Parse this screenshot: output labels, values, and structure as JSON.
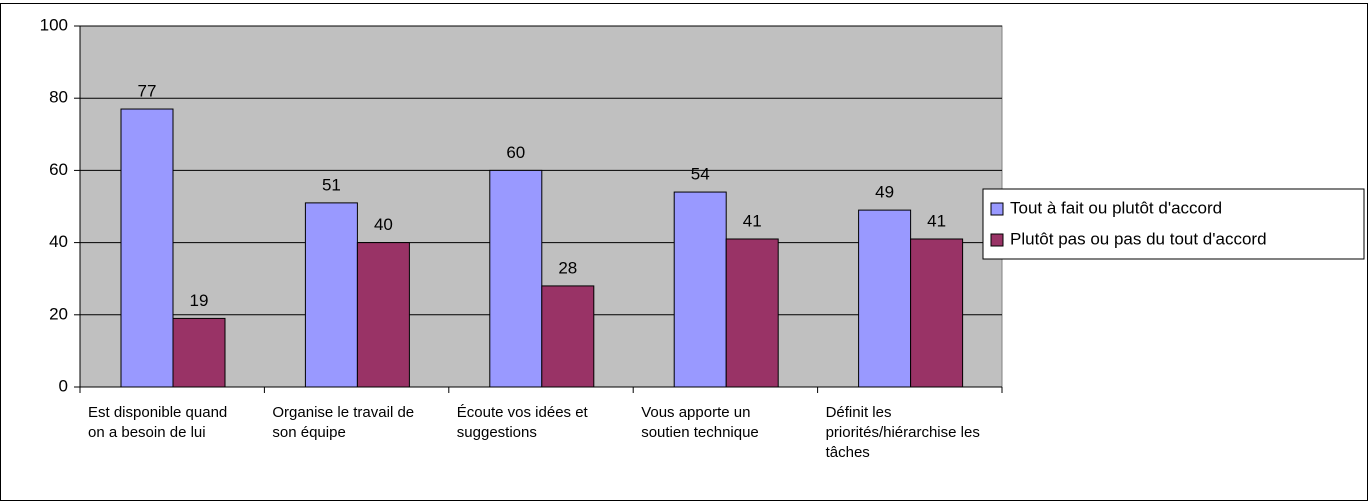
{
  "chart_data": {
    "type": "bar",
    "categories": [
      "Est disponible quand on a besoin de lui",
      "Organise le travail de son équipe",
      "Écoute vos idées et suggestions",
      "Vous apporte un soutien technique",
      "Définit les priorités/hiérarchise les tâches"
    ],
    "series": [
      {
        "name": "Tout à fait ou plutôt d'accord",
        "color": "#9999ff",
        "values": [
          77,
          51,
          60,
          54,
          49
        ]
      },
      {
        "name": "Plutôt pas ou pas du tout d'accord",
        "color": "#993366",
        "values": [
          19,
          40,
          28,
          41,
          41
        ]
      }
    ],
    "ylim": [
      0,
      100
    ],
    "yticks": [
      0,
      20,
      40,
      60,
      80,
      100
    ],
    "grid": true,
    "legend": "right"
  }
}
